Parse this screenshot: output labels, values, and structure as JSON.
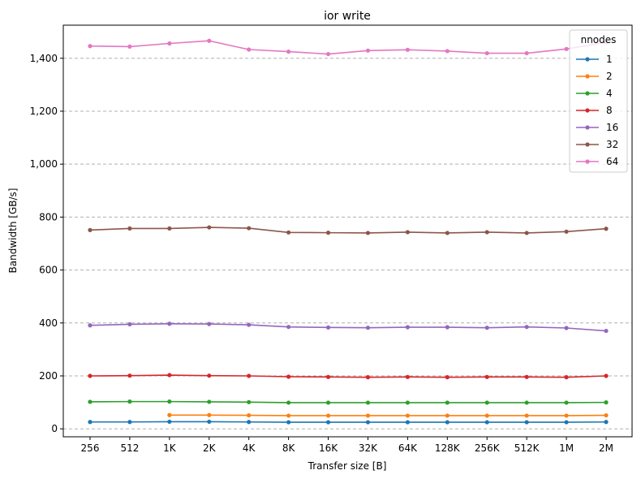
{
  "chart_data": {
    "type": "line",
    "title": "ior write",
    "xlabel": "Transfer size [B]",
    "ylabel": "Bandwidth [GB/s]",
    "categories": [
      "256",
      "512",
      "1K",
      "2K",
      "4K",
      "8K",
      "16K",
      "32K",
      "64K",
      "128K",
      "256K",
      "512K",
      "1M",
      "2M"
    ],
    "ylim": [
      -30,
      1525
    ],
    "yticks": [
      0,
      200,
      400,
      600,
      800,
      1000,
      1200,
      1400
    ],
    "ytick_labels": [
      "0",
      "200",
      "400",
      "600",
      "800",
      "1,000",
      "1,200",
      "1,400"
    ],
    "grid": "horizontal dashed",
    "legend": {
      "title": "nnodes",
      "placement": "top-right"
    },
    "series": [
      {
        "name": "1",
        "color": "#1f77b4",
        "values": [
          26,
          26,
          27,
          27,
          26,
          25,
          25,
          25,
          25,
          25,
          25,
          25,
          25,
          26
        ]
      },
      {
        "name": "2",
        "color": "#ff7f0e",
        "values": [
          null,
          null,
          52,
          52,
          51,
          50,
          50,
          50,
          50,
          50,
          50,
          50,
          50,
          51
        ]
      },
      {
        "name": "4",
        "color": "#2ca02c",
        "values": [
          102,
          103,
          103,
          102,
          101,
          99,
          99,
          99,
          99,
          99,
          99,
          99,
          99,
          100
        ]
      },
      {
        "name": "8",
        "color": "#d62728",
        "values": [
          200,
          201,
          203,
          201,
          200,
          197,
          196,
          195,
          196,
          195,
          196,
          196,
          195,
          200
        ]
      },
      {
        "name": "16",
        "color": "#9467bd",
        "values": [
          391,
          395,
          397,
          396,
          393,
          385,
          383,
          382,
          384,
          384,
          382,
          385,
          381,
          370
        ]
      },
      {
        "name": "32",
        "color": "#8c564b",
        "values": [
          751,
          757,
          757,
          761,
          758,
          742,
          741,
          740,
          743,
          740,
          743,
          740,
          745,
          756
        ]
      },
      {
        "name": "64",
        "color": "#e377c2",
        "values": [
          1446,
          1444,
          1456,
          1466,
          1433,
          1425,
          1416,
          1429,
          1432,
          1427,
          1419,
          1419,
          1435,
          1460
        ]
      }
    ]
  }
}
